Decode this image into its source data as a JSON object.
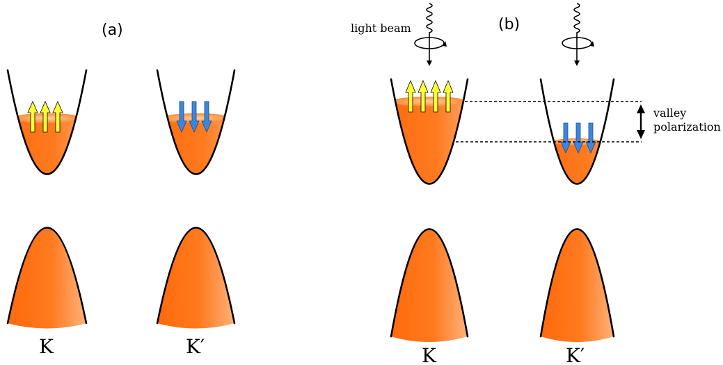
{
  "panels": {
    "a": {
      "label": "(a)",
      "valley_left": "K",
      "valley_right": "K′"
    },
    "b": {
      "label": "(b)",
      "valley_left": "K",
      "valley_right": "K′",
      "light_label": "light beam",
      "polarization_line1": "valley",
      "polarization_line2": "polarization"
    }
  },
  "colors": {
    "band_fill": "#ff7a1f",
    "band_highlight": "#ffb27a",
    "spin_up": "#ffff33",
    "spin_down": "#3d86e0",
    "outline": "#000000"
  },
  "icons": {
    "spin_up": "up-arrow-icon",
    "spin_down": "down-arrow-icon",
    "light": "circularly-polarized-light-icon"
  }
}
